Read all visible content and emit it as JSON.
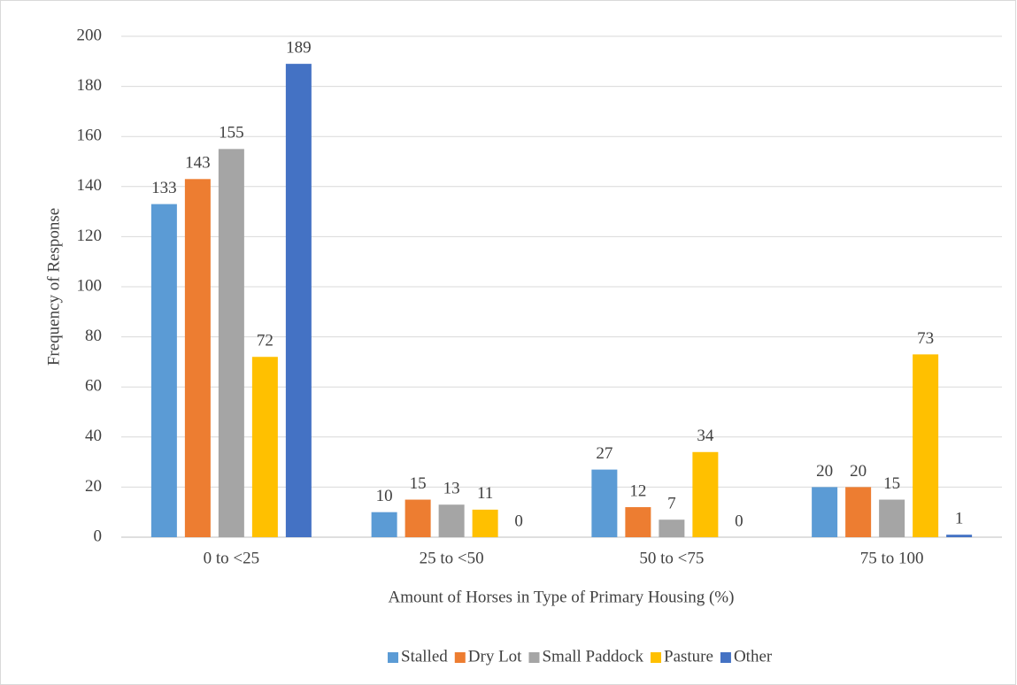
{
  "chart_data": {
    "type": "bar",
    "x_label": "Amount of Horses in Type of Primary Housing (%)",
    "y_label": "Frequency of Response",
    "categories": [
      "0 to <25",
      "25 to <50",
      "50 to <75",
      "75 to 100"
    ],
    "series": [
      {
        "name": "Stalled",
        "color": "#5b9bd5",
        "values": [
          133,
          10,
          27,
          20
        ]
      },
      {
        "name": "Dry Lot",
        "color": "#ed7d31",
        "values": [
          143,
          15,
          12,
          20
        ]
      },
      {
        "name": "Small Paddock",
        "color": "#a5a5a5",
        "values": [
          155,
          13,
          7,
          15
        ]
      },
      {
        "name": "Pasture",
        "color": "#ffc000",
        "values": [
          72,
          11,
          34,
          73
        ]
      },
      {
        "name": "Other",
        "color": "#4472c4",
        "values": [
          189,
          0,
          0,
          1
        ]
      }
    ],
    "ylim": [
      0,
      200
    ],
    "yticks": [
      0,
      20,
      40,
      60,
      80,
      100,
      120,
      140,
      160,
      180,
      200
    ],
    "grid": true,
    "data_labels": true,
    "legend": "bottom"
  }
}
